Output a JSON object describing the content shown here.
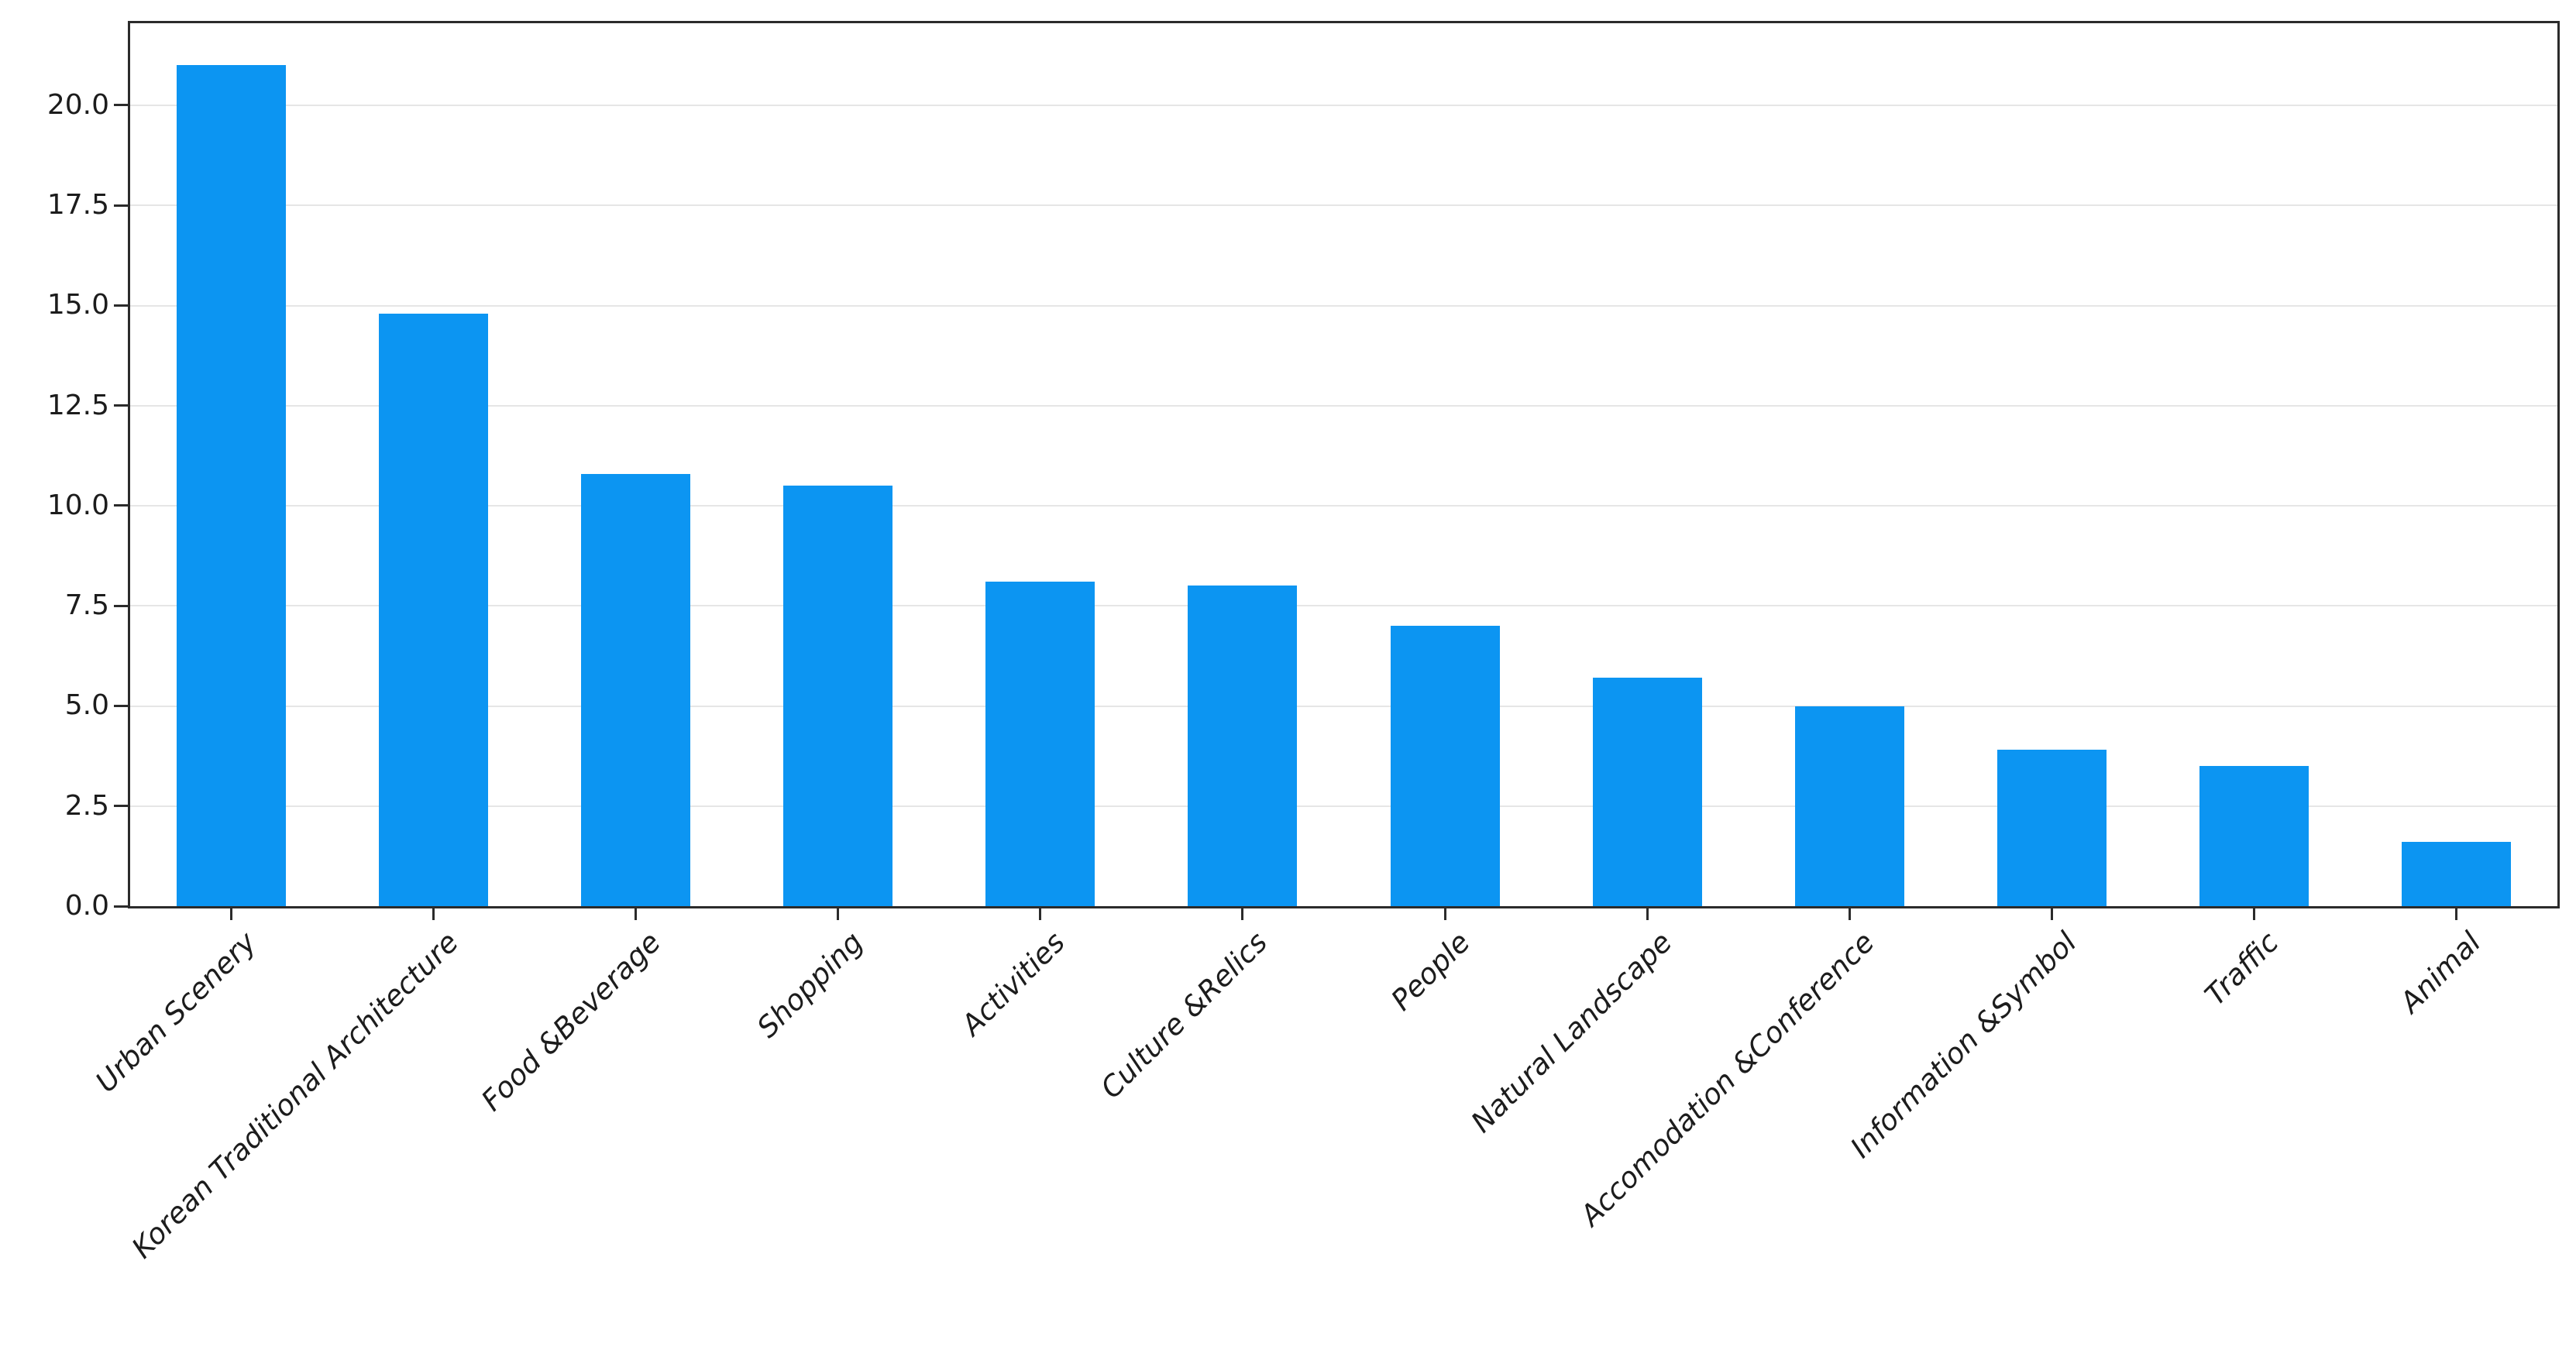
{
  "figure": {
    "background": "#ffffff",
    "title": "",
    "legend": {
      "visible": true,
      "entries": [],
      "position": "upper-right"
    }
  },
  "chart_data": {
    "type": "bar",
    "categories": [
      "Urban Scenery",
      "Korean Traditional Architecture",
      "Food &Beverage",
      "Shopping",
      "Activities",
      "Culture &Relics",
      "People",
      "Natural Landscape",
      "Accomodation &Conference",
      "Information &Symbol",
      "Traffic",
      "Animal"
    ],
    "values": [
      21.0,
      14.8,
      10.8,
      10.5,
      8.1,
      8.0,
      7.0,
      5.7,
      5.0,
      3.9,
      3.5,
      1.6
    ],
    "title": "",
    "xlabel": "",
    "ylabel": "",
    "ylim": [
      0,
      22.05
    ],
    "yticks": [
      0,
      2.5,
      5,
      7.5,
      10,
      12.5,
      15,
      17.5,
      20
    ],
    "ytick_labels": [
      "0.0",
      "2.5",
      "5.0",
      "7.5",
      "10.0",
      "12.5",
      "15.0",
      "17.5",
      "20.0"
    ],
    "grid": "horizontal",
    "legend_position": "upper-right",
    "bar_width_fraction": 0.54,
    "x_tick_label_style": "italic-rotated-45deg-right-aligned",
    "colors": {
      "bar": "#0c95f2",
      "axis": "#2b2b2b",
      "grid": "#e6e6e6",
      "tick_label": "#1c1c1c",
      "legend_border": "#c9c9c9"
    }
  }
}
